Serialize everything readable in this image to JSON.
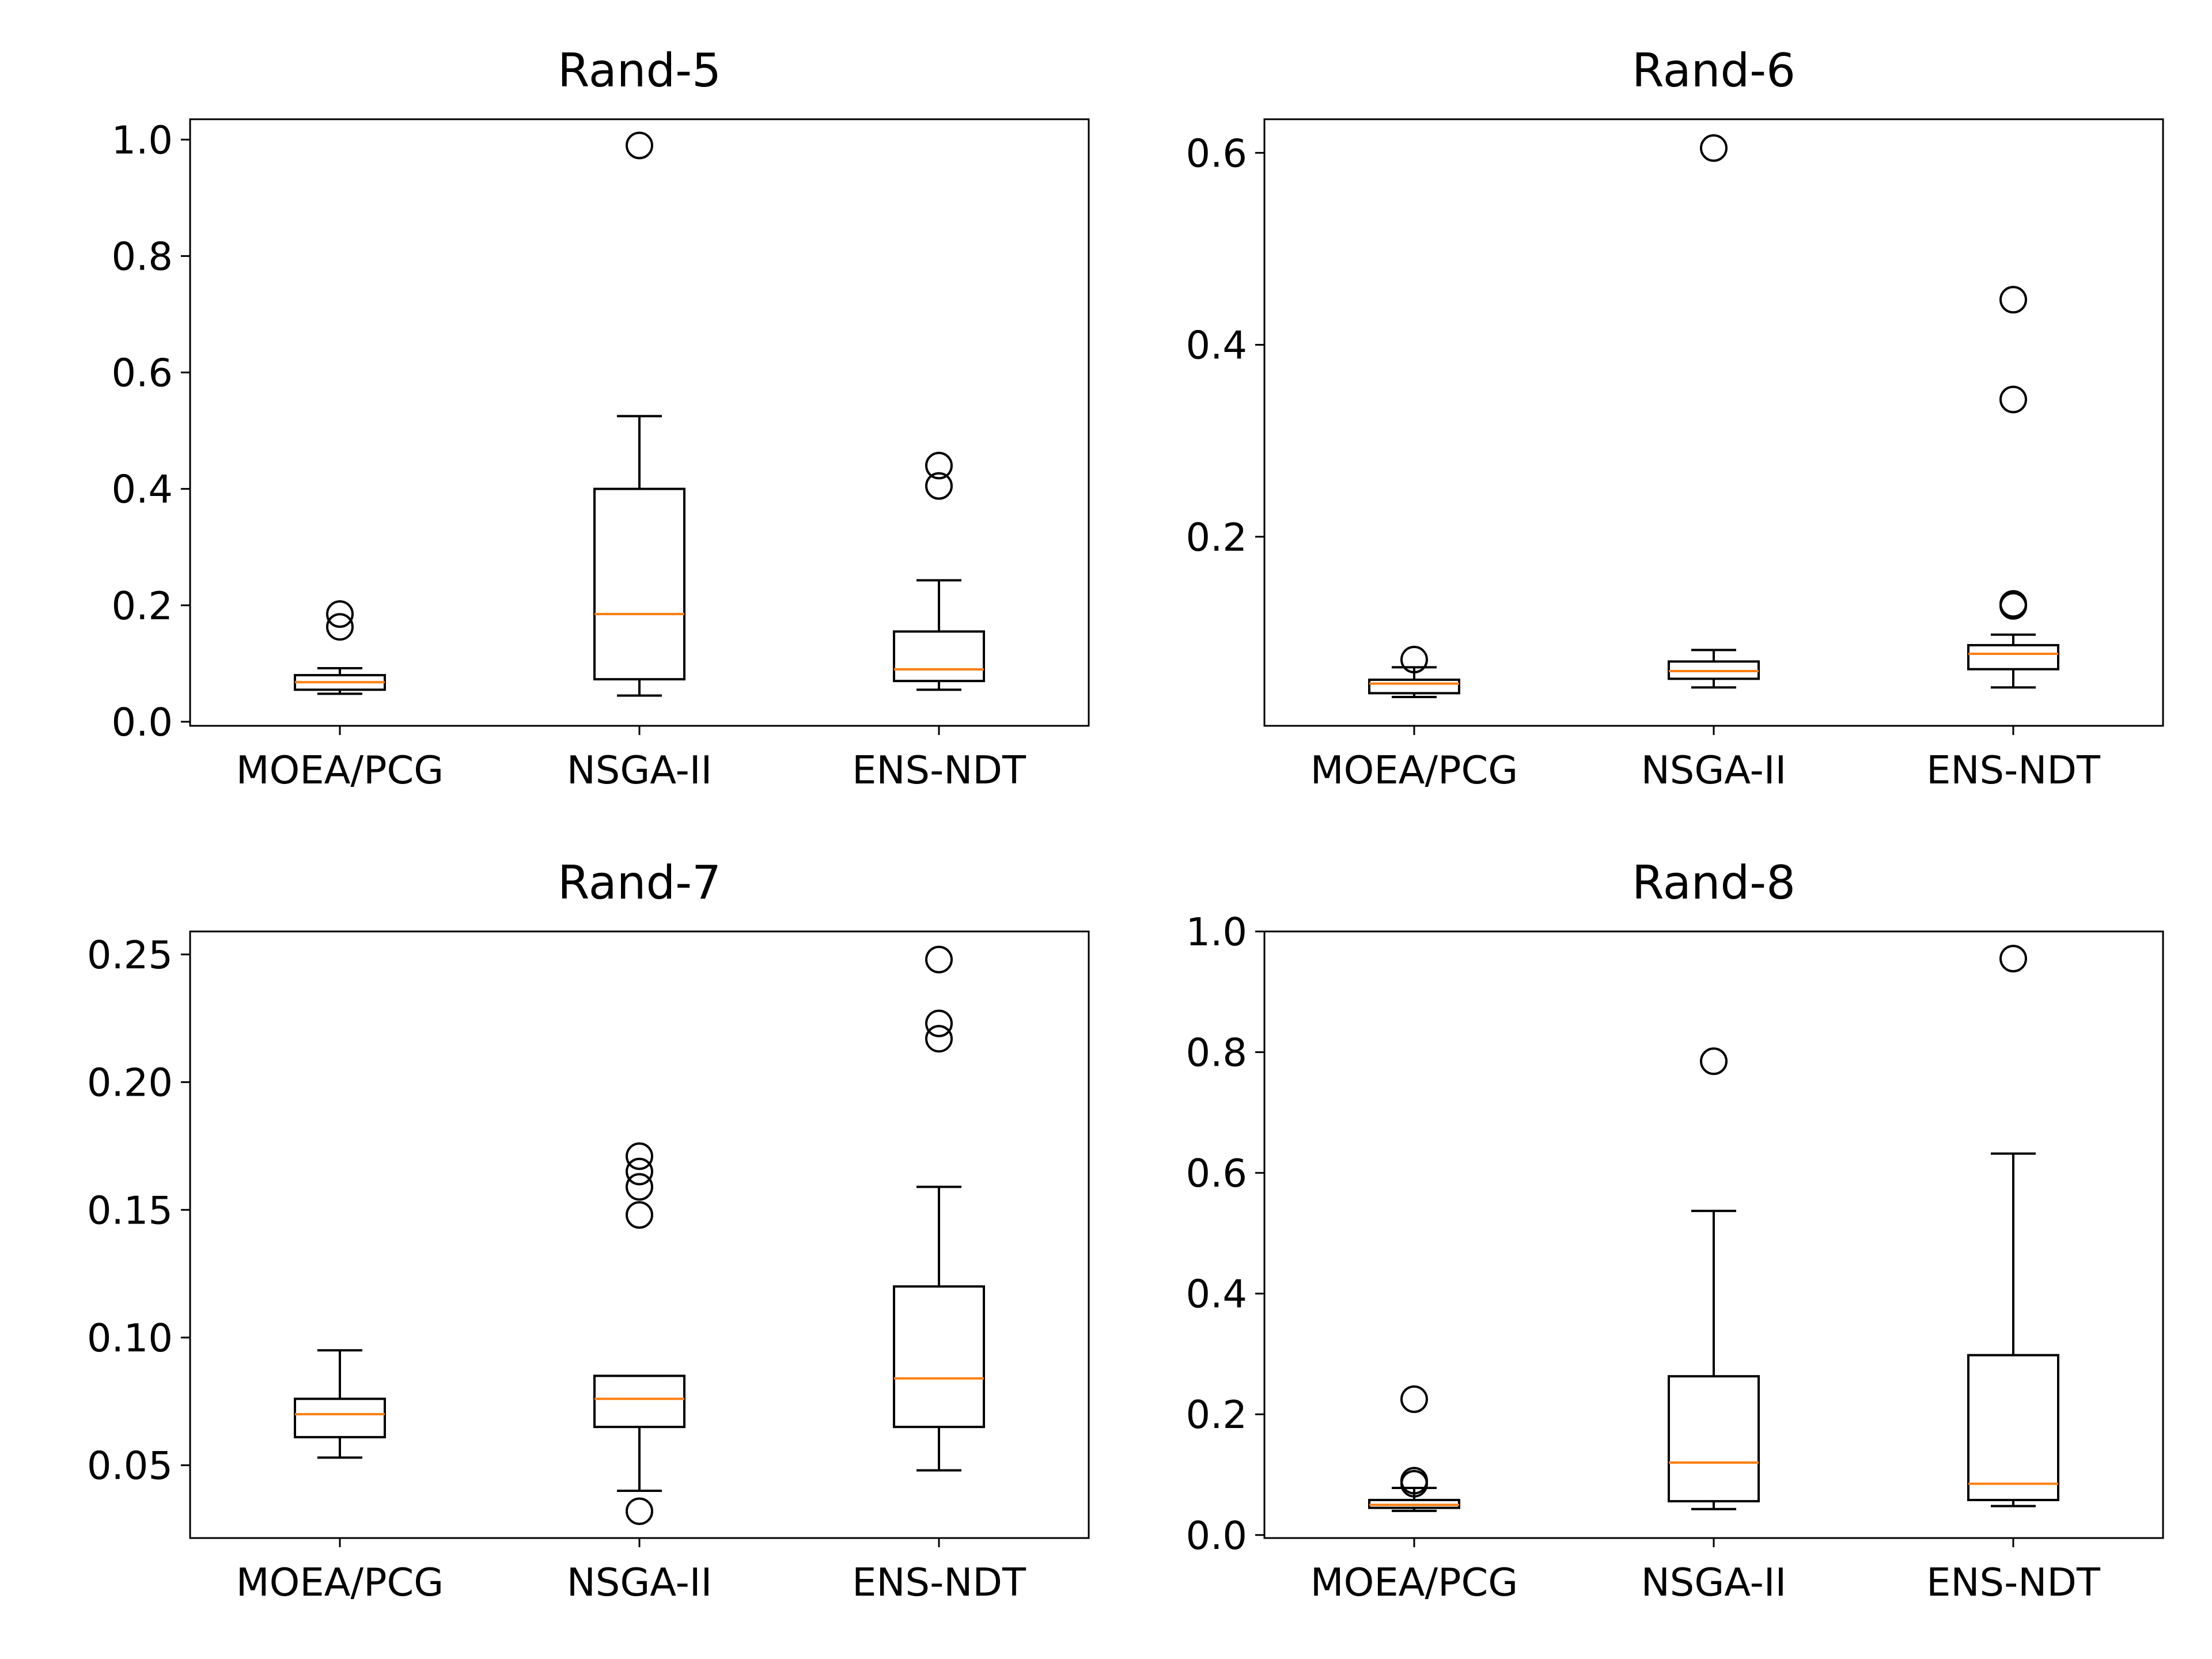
{
  "chart_data": [
    {
      "type": "box",
      "title": "Rand-5",
      "categories": [
        "MOEA/PCG",
        "NSGA-II",
        "ENS-NDT"
      ],
      "ylim": [
        -0.007,
        1.035
      ],
      "yticks": [
        "0.0",
        "0.2",
        "0.4",
        "0.6",
        "0.8",
        "1.0"
      ],
      "boxes": [
        {
          "name": "MOEA/PCG",
          "whislo": 0.048,
          "q1": 0.055,
          "median": 0.068,
          "q3": 0.08,
          "whishi": 0.092,
          "fliers": [
            0.163,
            0.185
          ]
        },
        {
          "name": "NSGA-II",
          "whislo": 0.045,
          "q1": 0.073,
          "median": 0.185,
          "q3": 0.4,
          "whishi": 0.525,
          "fliers": [
            0.99
          ]
        },
        {
          "name": "ENS-NDT",
          "whislo": 0.055,
          "q1": 0.07,
          "median": 0.09,
          "q3": 0.155,
          "whishi": 0.243,
          "fliers": [
            0.405,
            0.44
          ]
        }
      ]
    },
    {
      "type": "box",
      "title": "Rand-6",
      "categories": [
        "MOEA/PCG",
        "NSGA-II",
        "ENS-NDT"
      ],
      "ylim": [
        0.003,
        0.635
      ],
      "yticks": [
        "0.2",
        "0.4",
        "0.6"
      ],
      "boxes": [
        {
          "name": "MOEA/PCG",
          "whislo": 0.033,
          "q1": 0.037,
          "median": 0.047,
          "q3": 0.051,
          "whishi": 0.064,
          "fliers": [
            0.072
          ]
        },
        {
          "name": "NSGA-II",
          "whislo": 0.043,
          "q1": 0.052,
          "median": 0.06,
          "q3": 0.07,
          "whishi": 0.082,
          "fliers": [
            0.605
          ]
        },
        {
          "name": "ENS-NDT",
          "whislo": 0.043,
          "q1": 0.062,
          "median": 0.078,
          "q3": 0.087,
          "whishi": 0.098,
          "fliers": [
            0.128,
            0.13,
            0.343,
            0.447
          ]
        }
      ]
    },
    {
      "type": "box",
      "title": "Rand-7",
      "categories": [
        "MOEA/PCG",
        "NSGA-II",
        "ENS-NDT"
      ],
      "ylim": [
        0.0215,
        0.259
      ],
      "yticks": [
        "0.05",
        "0.10",
        "0.15",
        "0.20",
        "0.25"
      ],
      "boxes": [
        {
          "name": "MOEA/PCG",
          "whislo": 0.053,
          "q1": 0.061,
          "median": 0.07,
          "q3": 0.076,
          "whishi": 0.095,
          "fliers": []
        },
        {
          "name": "NSGA-II",
          "whislo": 0.04,
          "q1": 0.065,
          "median": 0.076,
          "q3": 0.085,
          "whishi": 0.085,
          "fliers": [
            0.032,
            0.148,
            0.159,
            0.165,
            0.171
          ]
        },
        {
          "name": "ENS-NDT",
          "whislo": 0.048,
          "q1": 0.065,
          "median": 0.084,
          "q3": 0.12,
          "whishi": 0.159,
          "fliers": [
            0.217,
            0.223,
            0.248
          ]
        }
      ]
    },
    {
      "type": "box",
      "title": "Rand-8",
      "categories": [
        "MOEA/PCG",
        "NSGA-II",
        "ENS-NDT"
      ],
      "ylim": [
        -0.005,
        1.0
      ],
      "yticks": [
        "0.0",
        "0.2",
        "0.4",
        "0.6",
        "0.8",
        "1.0"
      ],
      "boxes": [
        {
          "name": "MOEA/PCG",
          "whislo": 0.04,
          "q1": 0.045,
          "median": 0.05,
          "q3": 0.058,
          "whishi": 0.078,
          "fliers": [
            0.085,
            0.09,
            0.225
          ]
        },
        {
          "name": "NSGA-II",
          "whislo": 0.043,
          "q1": 0.056,
          "median": 0.12,
          "q3": 0.263,
          "whishi": 0.537,
          "fliers": [
            0.785
          ]
        },
        {
          "name": "ENS-NDT",
          "whislo": 0.048,
          "q1": 0.058,
          "median": 0.085,
          "q3": 0.298,
          "whishi": 0.632,
          "fliers": [
            0.955
          ]
        }
      ]
    }
  ],
  "colors": {
    "box": "#000000",
    "median": "#ff7f0e",
    "outlier": "#000000",
    "background": "#ffffff"
  }
}
